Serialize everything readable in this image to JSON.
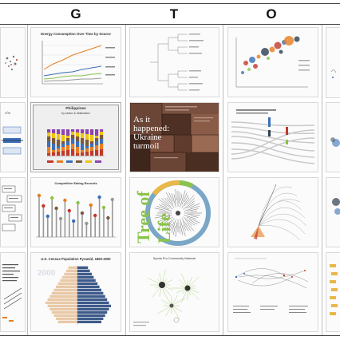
{
  "column_headers": [
    "G",
    "T",
    "O"
  ],
  "thumbnails": {
    "line_chart_title": "Energy Consumption Over Time by Source",
    "bar_chart_title": "Philippines",
    "bar_chart_subtitle": "by sector & destination",
    "ukraine_title": "As it happened: Ukraine turmoil",
    "lollipop_title": "Competitive Eating Records",
    "tree_of_life_label": "Tree of Life",
    "pyramid_title": "U.S. Census Population Pyramid, 1860-2000",
    "pyramid_year": "2000",
    "network_title": "Sports Pro Community Network"
  },
  "colors": {
    "frame": "#444444",
    "accent_orange": "#e67e22",
    "accent_blue": "#3b6fb6",
    "accent_green": "#8bc34a",
    "pyramid_left": "#e9c9a8",
    "pyramid_right": "#3e5a8a",
    "treemap_bg": "#5a3a2e"
  },
  "icons": [
    "column-header-g",
    "column-header-t",
    "column-header-o"
  ]
}
